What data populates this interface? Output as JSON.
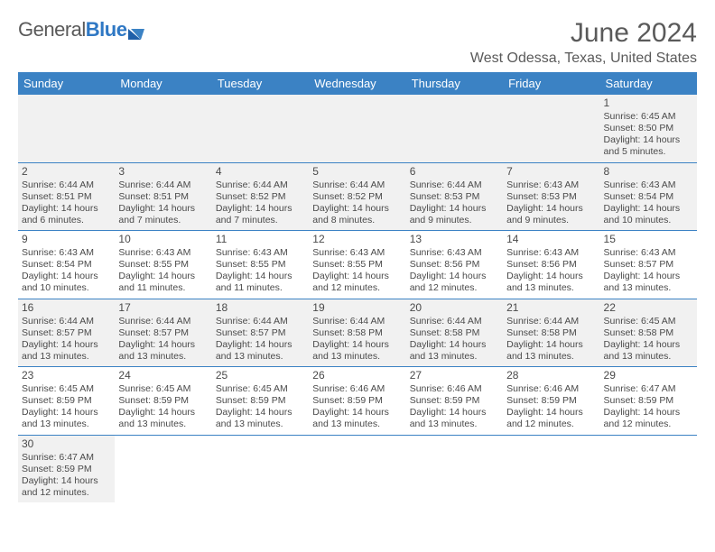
{
  "logo": {
    "text1": "General",
    "text2": "Blue"
  },
  "title": "June 2024",
  "location": "West Odessa, Texas, United States",
  "colors": {
    "header_bg": "#3b82c4",
    "header_fg": "#ffffff",
    "alt_row_bg": "#f1f1f1",
    "text": "#4a4a4a",
    "rule": "#3b82c4"
  },
  "dayNames": [
    "Sunday",
    "Monday",
    "Tuesday",
    "Wednesday",
    "Thursday",
    "Friday",
    "Saturday"
  ],
  "weeks": [
    [
      null,
      null,
      null,
      null,
      null,
      null,
      {
        "n": "1",
        "sr": "6:45 AM",
        "ss": "8:50 PM",
        "dl": "14 hours and 5 minutes."
      }
    ],
    [
      {
        "n": "2",
        "sr": "6:44 AM",
        "ss": "8:51 PM",
        "dl": "14 hours and 6 minutes."
      },
      {
        "n": "3",
        "sr": "6:44 AM",
        "ss": "8:51 PM",
        "dl": "14 hours and 7 minutes."
      },
      {
        "n": "4",
        "sr": "6:44 AM",
        "ss": "8:52 PM",
        "dl": "14 hours and 7 minutes."
      },
      {
        "n": "5",
        "sr": "6:44 AM",
        "ss": "8:52 PM",
        "dl": "14 hours and 8 minutes."
      },
      {
        "n": "6",
        "sr": "6:44 AM",
        "ss": "8:53 PM",
        "dl": "14 hours and 9 minutes."
      },
      {
        "n": "7",
        "sr": "6:43 AM",
        "ss": "8:53 PM",
        "dl": "14 hours and 9 minutes."
      },
      {
        "n": "8",
        "sr": "6:43 AM",
        "ss": "8:54 PM",
        "dl": "14 hours and 10 minutes."
      }
    ],
    [
      {
        "n": "9",
        "sr": "6:43 AM",
        "ss": "8:54 PM",
        "dl": "14 hours and 10 minutes."
      },
      {
        "n": "10",
        "sr": "6:43 AM",
        "ss": "8:55 PM",
        "dl": "14 hours and 11 minutes."
      },
      {
        "n": "11",
        "sr": "6:43 AM",
        "ss": "8:55 PM",
        "dl": "14 hours and 11 minutes."
      },
      {
        "n": "12",
        "sr": "6:43 AM",
        "ss": "8:55 PM",
        "dl": "14 hours and 12 minutes."
      },
      {
        "n": "13",
        "sr": "6:43 AM",
        "ss": "8:56 PM",
        "dl": "14 hours and 12 minutes."
      },
      {
        "n": "14",
        "sr": "6:43 AM",
        "ss": "8:56 PM",
        "dl": "14 hours and 13 minutes."
      },
      {
        "n": "15",
        "sr": "6:43 AM",
        "ss": "8:57 PM",
        "dl": "14 hours and 13 minutes."
      }
    ],
    [
      {
        "n": "16",
        "sr": "6:44 AM",
        "ss": "8:57 PM",
        "dl": "14 hours and 13 minutes."
      },
      {
        "n": "17",
        "sr": "6:44 AM",
        "ss": "8:57 PM",
        "dl": "14 hours and 13 minutes."
      },
      {
        "n": "18",
        "sr": "6:44 AM",
        "ss": "8:57 PM",
        "dl": "14 hours and 13 minutes."
      },
      {
        "n": "19",
        "sr": "6:44 AM",
        "ss": "8:58 PM",
        "dl": "14 hours and 13 minutes."
      },
      {
        "n": "20",
        "sr": "6:44 AM",
        "ss": "8:58 PM",
        "dl": "14 hours and 13 minutes."
      },
      {
        "n": "21",
        "sr": "6:44 AM",
        "ss": "8:58 PM",
        "dl": "14 hours and 13 minutes."
      },
      {
        "n": "22",
        "sr": "6:45 AM",
        "ss": "8:58 PM",
        "dl": "14 hours and 13 minutes."
      }
    ],
    [
      {
        "n": "23",
        "sr": "6:45 AM",
        "ss": "8:59 PM",
        "dl": "14 hours and 13 minutes."
      },
      {
        "n": "24",
        "sr": "6:45 AM",
        "ss": "8:59 PM",
        "dl": "14 hours and 13 minutes."
      },
      {
        "n": "25",
        "sr": "6:45 AM",
        "ss": "8:59 PM",
        "dl": "14 hours and 13 minutes."
      },
      {
        "n": "26",
        "sr": "6:46 AM",
        "ss": "8:59 PM",
        "dl": "14 hours and 13 minutes."
      },
      {
        "n": "27",
        "sr": "6:46 AM",
        "ss": "8:59 PM",
        "dl": "14 hours and 13 minutes."
      },
      {
        "n": "28",
        "sr": "6:46 AM",
        "ss": "8:59 PM",
        "dl": "14 hours and 12 minutes."
      },
      {
        "n": "29",
        "sr": "6:47 AM",
        "ss": "8:59 PM",
        "dl": "14 hours and 12 minutes."
      }
    ],
    [
      {
        "n": "30",
        "sr": "6:47 AM",
        "ss": "8:59 PM",
        "dl": "14 hours and 12 minutes."
      },
      null,
      null,
      null,
      null,
      null,
      null
    ]
  ],
  "labels": {
    "sunrise": "Sunrise:",
    "sunset": "Sunset:",
    "daylight": "Daylight:"
  }
}
